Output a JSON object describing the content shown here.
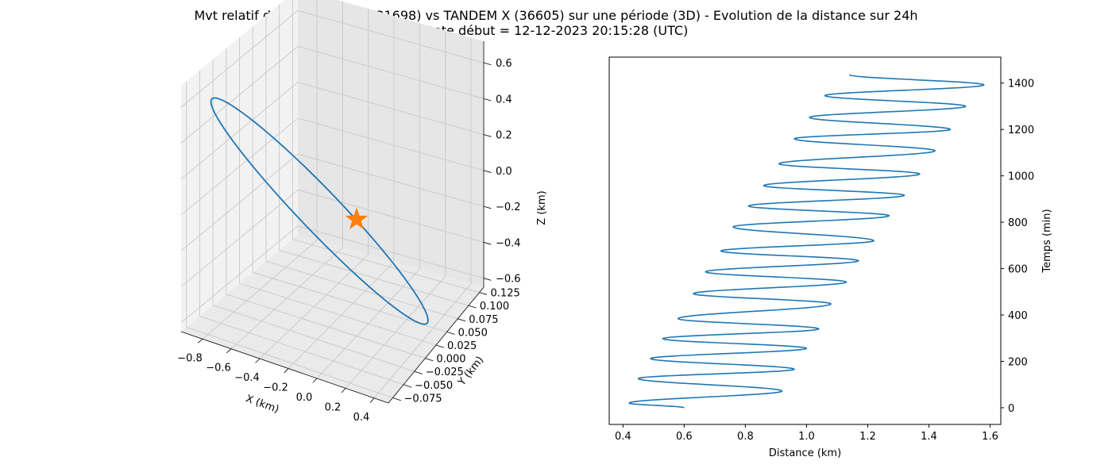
{
  "figure": {
    "title_line1": "Mvt relatif de TERRA SAR X (31698) vs TANDEM X (36605) sur une période (3D) - Evolution de la distance sur 24h",
    "title_line2": "Date début = 12-12-2023 20:15:28 (UTC)"
  },
  "colors": {
    "series": "#1f77b4",
    "marker": "#ff7f0e",
    "pane": "#f2f2f2",
    "grid": "#c8c8c8"
  },
  "chart_data": [
    {
      "type": "line3d",
      "xlabel": "X (km)",
      "ylabel": "Y (km)",
      "zlabel": "Z (km)",
      "xlim": [
        -0.95,
        0.5
      ],
      "ylim": [
        -0.085,
        0.135
      ],
      "zlim": [
        -0.65,
        0.72
      ],
      "xticks": [
        -0.8,
        -0.6,
        -0.4,
        -0.2,
        0.0,
        0.2,
        0.4
      ],
      "xtick_labels": [
        "−0.8",
        "−0.6",
        "−0.4",
        "−0.2",
        "0.0",
        "0.2",
        "0.4"
      ],
      "yticks": [
        -0.075,
        -0.05,
        -0.025,
        0.0,
        0.025,
        0.05,
        0.075,
        0.1,
        0.125
      ],
      "ytick_labels": [
        "−0.075",
        "−0.050",
        "−0.025",
        "0.000",
        "0.025",
        "0.050",
        "0.075",
        "0.100",
        "0.125"
      ],
      "zticks": [
        -0.6,
        -0.4,
        -0.2,
        0.0,
        0.2,
        0.4,
        0.6
      ],
      "ztick_labels": [
        "−0.6",
        "−0.4",
        "−0.2",
        "0.0",
        "0.2",
        "0.4",
        "0.6"
      ],
      "grid": true,
      "trajectory": {
        "shape": "closed elongated loop",
        "end_a": {
          "x": -0.9,
          "y": -0.04,
          "z": 0.55
        },
        "end_b": {
          "x": 0.42,
          "y": 0.03,
          "z": -0.56
        },
        "half_width": {
          "x": 0.06,
          "y": 0.045,
          "z": 0.05
        }
      },
      "marker": {
        "symbol": "star",
        "x": 0.0,
        "y": 0.0,
        "z": 0.0
      }
    },
    {
      "type": "line",
      "xlabel": "Distance (km)",
      "ylabel": "Temps (min)",
      "xlim": [
        0.355,
        1.635
      ],
      "ylim": [
        -72,
        1512
      ],
      "xticks": [
        0.4,
        0.6,
        0.8,
        1.0,
        1.2,
        1.4,
        1.6
      ],
      "xtick_labels": [
        "0.4",
        "0.6",
        "0.8",
        "1.0",
        "1.2",
        "1.4",
        "1.6"
      ],
      "yticks": [
        0,
        200,
        400,
        600,
        800,
        1000,
        1200,
        1400
      ],
      "ytick_labels": [
        "0",
        "200",
        "400",
        "600",
        "800",
        "1000",
        "1200",
        "1400"
      ],
      "y_axis_side": "right",
      "grid": false,
      "series": [
        {
          "points": [
            [
              0.6,
              0
            ],
            [
              0.42,
              20
            ],
            [
              0.92,
              72
            ],
            [
              0.45,
              126
            ],
            [
              0.96,
              166
            ],
            [
              0.49,
              212
            ],
            [
              1.0,
              256
            ],
            [
              0.53,
              298
            ],
            [
              1.04,
              340
            ],
            [
              0.58,
              384
            ],
            [
              1.08,
              448
            ],
            [
              0.63,
              492
            ],
            [
              1.13,
              542
            ],
            [
              0.67,
              586
            ],
            [
              1.17,
              634
            ],
            [
              0.72,
              676
            ],
            [
              1.22,
              720
            ],
            [
              0.76,
              780
            ],
            [
              1.27,
              828
            ],
            [
              0.81,
              870
            ],
            [
              1.32,
              916
            ],
            [
              0.86,
              958
            ],
            [
              1.37,
              1008
            ],
            [
              0.91,
              1052
            ],
            [
              1.42,
              1108
            ],
            [
              0.96,
              1160
            ],
            [
              1.47,
              1200
            ],
            [
              1.01,
              1252
            ],
            [
              1.52,
              1300
            ],
            [
              1.06,
              1346
            ],
            [
              1.58,
              1392
            ],
            [
              1.14,
              1436
            ]
          ]
        }
      ]
    }
  ]
}
